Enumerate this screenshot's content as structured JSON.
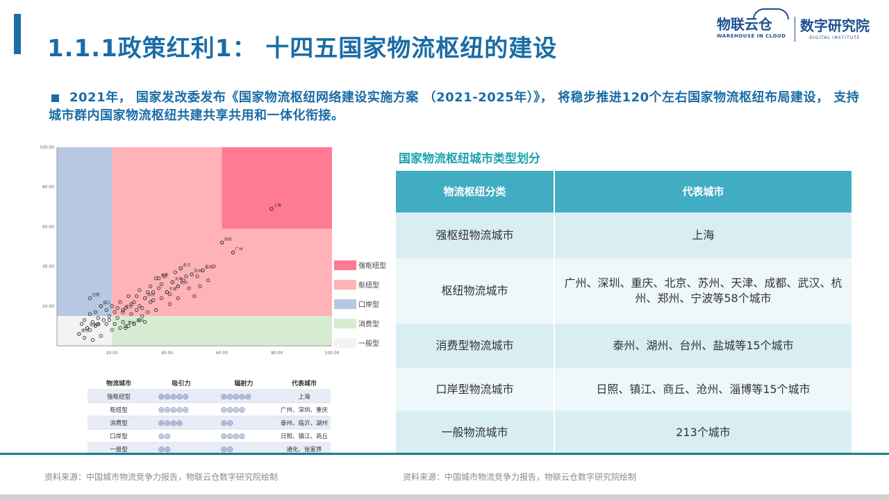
{
  "slide": {
    "title": "1.1.1政策红利1： 十四五国家物流枢纽的建设",
    "bullet": "2021年， 国家发改委发布《国家物流枢纽网络建设实施方案 （2021-2025年）》， 将稳步推进120个左右国家物流枢纽布局建设， 支持城市群内国家物流枢纽共建共享共用和一体化衔接。"
  },
  "logo": {
    "wic_main": "物联云仓",
    "wic_sub": "WAREHOUSE IN CLOUD",
    "di_main": "数字研究院",
    "di_sub": "DIGITAL INSTITUTE"
  },
  "colors": {
    "accent": "#1a6ca6",
    "teal": "#19a3b0",
    "table_header": "#41adc2",
    "zone_strong": "#ff7a93",
    "zone_hub": "#ffb3b7",
    "zone_port": "#b6c8e2",
    "zone_consume": "#d6ecd0",
    "zone_general": "#f3f3f3"
  },
  "chart_data": {
    "type": "scatter",
    "xlim": [
      0,
      100
    ],
    "ylim": [
      0,
      100
    ],
    "xticks": [
      "20.00",
      "40.00",
      "60.00",
      "80.00",
      "100.00"
    ],
    "yticks": [
      "20.00",
      "40.00",
      "60.00",
      "80.00",
      "100.00"
    ],
    "zones": [
      {
        "name": "强枢纽型",
        "x": [
          60,
          100
        ],
        "y": [
          59,
          100
        ],
        "color": "#ff7a93"
      },
      {
        "name": "枢纽型",
        "x": [
          20,
          100
        ],
        "y": [
          15,
          100
        ],
        "color": "#ffb3b7"
      },
      {
        "name": "口岸型",
        "x": [
          0,
          20
        ],
        "y": [
          15,
          100
        ],
        "color": "#b6c8e2"
      },
      {
        "name": "消费型",
        "x": [
          20,
          100
        ],
        "y": [
          0,
          15
        ],
        "color": "#d6ecd0"
      },
      {
        "name": "一般型",
        "x": [
          0,
          20
        ],
        "y": [
          0,
          15
        ],
        "color": "#f3f3f3"
      }
    ],
    "legend": [
      "强枢纽型",
      "枢纽型",
      "口岸型",
      "消费型",
      "一般型"
    ],
    "legend_position": "right",
    "labeled_points": [
      {
        "label": "上海",
        "x": 78,
        "y": 69
      },
      {
        "label": "深圳",
        "x": 60,
        "y": 52
      },
      {
        "label": "广州",
        "x": 64,
        "y": 47
      },
      {
        "label": "重庆",
        "x": 53,
        "y": 38
      },
      {
        "label": "武汉",
        "x": 45,
        "y": 39
      },
      {
        "label": "苏州",
        "x": 49,
        "y": 36
      },
      {
        "label": "成都",
        "x": 37,
        "y": 34
      },
      {
        "label": "天津",
        "x": 42,
        "y": 32
      },
      {
        "label": "杭州",
        "x": 44,
        "y": 30
      },
      {
        "label": "宁波",
        "x": 40,
        "y": 27
      },
      {
        "label": "郑州",
        "x": 32,
        "y": 24
      },
      {
        "label": "日照",
        "x": 12,
        "y": 24
      },
      {
        "label": "镇江",
        "x": 16,
        "y": 20
      },
      {
        "label": "商丘",
        "x": 24,
        "y": 18
      },
      {
        "label": "泰州",
        "x": 25,
        "y": 10
      },
      {
        "label": "湖州",
        "x": 28,
        "y": 11
      },
      {
        "label": "通化",
        "x": 8,
        "y": 6
      },
      {
        "label": "张家界",
        "x": 11,
        "y": 9
      }
    ],
    "points": [
      [
        78,
        69
      ],
      [
        60,
        52
      ],
      [
        64,
        47
      ],
      [
        53,
        38
      ],
      [
        51,
        35
      ],
      [
        47,
        35
      ],
      [
        45,
        39
      ],
      [
        49,
        36
      ],
      [
        55,
        33
      ],
      [
        57,
        40
      ],
      [
        42,
        32
      ],
      [
        44,
        30
      ],
      [
        40,
        27
      ],
      [
        38,
        31
      ],
      [
        36,
        34
      ],
      [
        34,
        30
      ],
      [
        32,
        24
      ],
      [
        30,
        28
      ],
      [
        28,
        22
      ],
      [
        26,
        25
      ],
      [
        30,
        20
      ],
      [
        34,
        22
      ],
      [
        38,
        24
      ],
      [
        41,
        21
      ],
      [
        36,
        18
      ],
      [
        29,
        18
      ],
      [
        25,
        19
      ],
      [
        23,
        22
      ],
      [
        21,
        17
      ],
      [
        27,
        16
      ],
      [
        31,
        15
      ],
      [
        33,
        17
      ],
      [
        20,
        20
      ],
      [
        18,
        18
      ],
      [
        16,
        20
      ],
      [
        14,
        17
      ],
      [
        12,
        16
      ],
      [
        15,
        14
      ],
      [
        10,
        13
      ],
      [
        13,
        12
      ],
      [
        17,
        13
      ],
      [
        19,
        15
      ],
      [
        22,
        14
      ],
      [
        24,
        12
      ],
      [
        26,
        10
      ],
      [
        28,
        11
      ],
      [
        25,
        9
      ],
      [
        30,
        13
      ],
      [
        32,
        12
      ],
      [
        21,
        11
      ],
      [
        18,
        11
      ],
      [
        14,
        10
      ],
      [
        11,
        9
      ],
      [
        8,
        6
      ],
      [
        10,
        4
      ],
      [
        13,
        3
      ],
      [
        16,
        5
      ],
      [
        20,
        8
      ],
      [
        23,
        9
      ],
      [
        35,
        27
      ],
      [
        39,
        35
      ],
      [
        43,
        37
      ],
      [
        46,
        33
      ],
      [
        48,
        29
      ],
      [
        52,
        30
      ],
      [
        41,
        26
      ],
      [
        37,
        29
      ],
      [
        33,
        27
      ],
      [
        29,
        25
      ],
      [
        27,
        21
      ],
      [
        24,
        17
      ],
      [
        22,
        19
      ],
      [
        19,
        13
      ],
      [
        15,
        11
      ],
      [
        12,
        8
      ],
      [
        9,
        11
      ],
      [
        35,
        23
      ],
      [
        31,
        19
      ],
      [
        44,
        24
      ],
      [
        50,
        25
      ]
    ]
  },
  "mini_table": {
    "headers": [
      "物流城市",
      "吸引力",
      "辐射力",
      "代表城市"
    ],
    "rows": [
      {
        "type": "强枢纽型",
        "attract": "◎◎◎◎◎",
        "radiate": "◎◎◎◎◎",
        "cities": "上海"
      },
      {
        "type": "枢纽型",
        "attract": "◎◎◎◎◎",
        "radiate": "◎◎◎◎",
        "cities": "广州、深圳、重庆"
      },
      {
        "type": "消费型",
        "attract": "◎◎◎◎",
        "radiate": "◎◎",
        "cities": "泰州、临沂、湖州"
      },
      {
        "type": "口岸型",
        "attract": "◎◎",
        "radiate": "◎◎◎◎",
        "cities": "日照、镇江、商丘"
      },
      {
        "type": "一般型",
        "attract": "◎◎",
        "radiate": "◎◎",
        "cities": "通化、张家界"
      }
    ]
  },
  "table": {
    "title": "国家物流枢纽城市类型划分",
    "headers": [
      "物流枢纽分类",
      "代表城市"
    ],
    "rows": [
      {
        "type": "强枢纽物流城市",
        "cities": "上海"
      },
      {
        "type": "枢纽物流城市",
        "cities": "广州、深圳、重庆、北京、苏州、天津、成都、武汉、杭州、郑州、宁波等58个城市"
      },
      {
        "type": "消费型物流城市",
        "cities": "泰州、湖州、台州、盐城等15个城市"
      },
      {
        "type": "口岸型物流城市",
        "cities": "日照、镇江、商丘、沧州、淄博等15个城市"
      },
      {
        "type": "一般物流城市",
        "cities": "213个城市"
      }
    ]
  },
  "sources": {
    "left": "资料来源：中国城市物流竞争力报告，物联云仓数字研究院绘制",
    "right": "资料来源：中国城市物流竞争力报告，物联云仓数字研究院绘制"
  }
}
